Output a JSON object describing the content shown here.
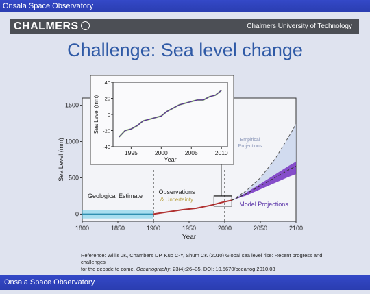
{
  "header": {
    "banner_text": "Onsala Space Observatory"
  },
  "chalmers_bar": {
    "logo_text": "CHALMERS",
    "university": "Chalmers University of Technology",
    "seal_icon": "chalmers-seal-icon"
  },
  "slide": {
    "title": "Challenge: Sea level change"
  },
  "chart_data": [
    {
      "type": "line",
      "title": "",
      "xlabel": "Year",
      "ylabel": "Sea Level (mm)",
      "xlim": [
        1800,
        2100
      ],
      "ylim": [
        -100,
        1600
      ],
      "xticks": [
        1800,
        1850,
        1900,
        1950,
        2000,
        2050,
        2100
      ],
      "yticks": [
        0,
        500,
        1000,
        1500
      ],
      "annotations": [
        "Geological Estimate",
        "Observations",
        "& Uncertainty",
        "Empirical",
        "Projections",
        "Model Projections"
      ],
      "series": [
        {
          "x": [
            1800,
            1850,
            1900
          ],
          "y": [
            0,
            0,
            0
          ]
        },
        {
          "x": [
            1900,
            1920,
            1940,
            1960,
            1980,
            2000,
            2010
          ],
          "y": [
            0,
            30,
            60,
            80,
            120,
            170,
            190
          ]
        },
        {
          "x": [
            2010,
            2030,
            2050,
            2070,
            2090,
            2100
          ],
          "y": [
            190,
            320,
            500,
            750,
            1070,
            1240
          ]
        },
        {
          "x": [
            2010,
            2030,
            2050,
            2070,
            2090,
            2100
          ],
          "y": [
            190,
            280,
            390,
            500,
            610,
            660
          ]
        }
      ],
      "colors": {
        "geological": "#5ec8e6",
        "observed": "#b03030",
        "empirical_band": "#c8d4ec",
        "model_band": "#7a3cc4"
      }
    },
    {
      "type": "line",
      "title": "",
      "xlabel": "Year",
      "ylabel": "Sea Level (mm)",
      "xlim": [
        1992,
        2011
      ],
      "ylim": [
        -40,
        40
      ],
      "xticks": [
        1995,
        2000,
        2005,
        2010
      ],
      "yticks": [
        -40,
        -20,
        0,
        20,
        40
      ],
      "series": [
        {
          "x": [
            1993,
            1994,
            1995,
            1996,
            1997,
            1998,
            1999,
            2000,
            2001,
            2002,
            2003,
            2004,
            2005,
            2006,
            2007,
            2008,
            2009,
            2010
          ],
          "y": [
            -28,
            -20,
            -18,
            -14,
            -8,
            -6,
            -4,
            -2,
            4,
            8,
            12,
            14,
            16,
            18,
            18,
            22,
            24,
            30
          ]
        }
      ]
    }
  ],
  "reference": {
    "line1": "Reference: Willis JK, Chambers DP, Kuo C-Y, Shum CK (2010) Global sea level rise: Recent progress and challenges",
    "line2_pre": "for the decade to come. ",
    "journal": "Oceanography",
    "line2_post": ", 23(4):26–35, DOI: 10.5670/oceanog.2010.03"
  },
  "footer": {
    "banner_text": "Onsala Space Observatory"
  }
}
